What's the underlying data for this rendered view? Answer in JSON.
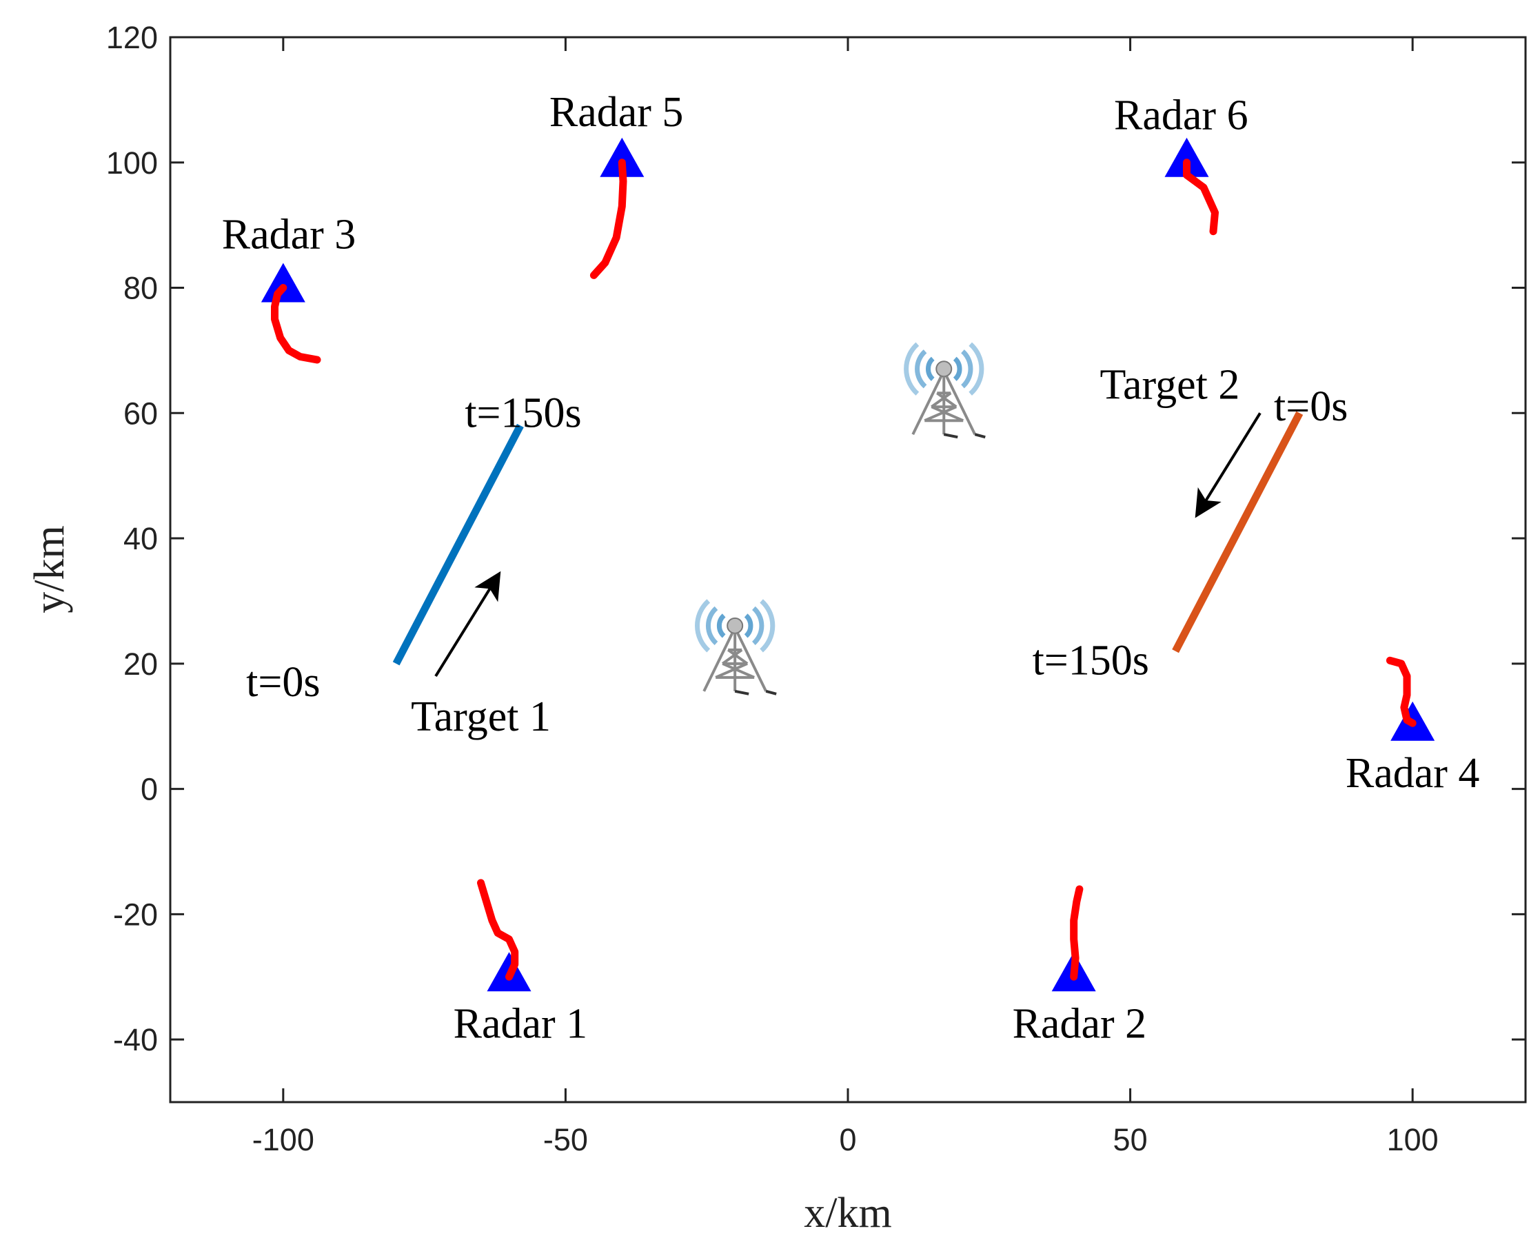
{
  "chart_data": {
    "type": "scatter",
    "title": "",
    "xlabel": "x/km",
    "ylabel": "y/km",
    "xlim": [
      -120,
      120
    ],
    "ylim": [
      -50,
      120
    ],
    "xticks": [
      -100,
      -50,
      0,
      50,
      100
    ],
    "yticks": [
      -40,
      -20,
      0,
      20,
      40,
      60,
      80,
      100,
      120
    ],
    "xtick_labels": [
      "-100",
      "-50",
      "0",
      "50",
      "100"
    ],
    "ytick_labels": [
      "-40",
      "-20",
      "0",
      "20",
      "40",
      "60",
      "80",
      "100",
      "120"
    ],
    "grid": false,
    "radars": [
      {
        "name": "Radar 1",
        "x": -60,
        "y": -30,
        "label_x": -58,
        "label_y": -37.5
      },
      {
        "name": "Radar 2",
        "x": 40,
        "y": -30,
        "label_x": 41,
        "label_y": -37.5
      },
      {
        "name": "Radar 3",
        "x": -100,
        "y": 80,
        "label_x": -99,
        "label_y": 88.5
      },
      {
        "name": "Radar 4",
        "x": 100,
        "y": 10,
        "label_x": 100,
        "label_y": 2.5
      },
      {
        "name": "Radar 5",
        "x": -40,
        "y": 100,
        "label_x": -41,
        "label_y": 108
      },
      {
        "name": "Radar 6",
        "x": 60,
        "y": 100,
        "label_x": 59,
        "label_y": 107.5
      }
    ],
    "radar_color": "#0000ff",
    "radar_tracks": [
      {
        "radar": "Radar 1",
        "points": [
          [
            -65,
            -15
          ],
          [
            -64,
            -18
          ],
          [
            -63,
            -21
          ],
          [
            -62,
            -23
          ],
          [
            -60,
            -24
          ],
          [
            -59,
            -26
          ],
          [
            -59,
            -28
          ],
          [
            -60,
            -30
          ]
        ]
      },
      {
        "radar": "Radar 2",
        "points": [
          [
            41,
            -16
          ],
          [
            40.5,
            -18
          ],
          [
            40,
            -21
          ],
          [
            40,
            -24
          ],
          [
            40.3,
            -27
          ],
          [
            40,
            -30
          ]
        ]
      },
      {
        "radar": "Radar 3",
        "points": [
          [
            -100,
            80
          ],
          [
            -101,
            79
          ],
          [
            -101.5,
            77
          ],
          [
            -101.5,
            75
          ],
          [
            -100.5,
            72
          ],
          [
            -99,
            70
          ],
          [
            -97,
            69
          ],
          [
            -94,
            68.5
          ]
        ]
      },
      {
        "radar": "Radar 4",
        "points": [
          [
            96,
            20.5
          ],
          [
            98,
            20
          ],
          [
            99,
            18
          ],
          [
            99,
            15
          ],
          [
            98.5,
            13
          ],
          [
            99,
            11
          ],
          [
            100,
            10.5
          ]
        ]
      },
      {
        "radar": "Radar 5",
        "points": [
          [
            -40,
            100
          ],
          [
            -39.8,
            97
          ],
          [
            -40,
            93
          ],
          [
            -41,
            88
          ],
          [
            -43,
            84
          ],
          [
            -45,
            82
          ]
        ]
      },
      {
        "radar": "Radar 6",
        "points": [
          [
            60,
            100
          ],
          [
            60,
            98
          ],
          [
            61.5,
            97
          ],
          [
            63,
            96
          ],
          [
            64,
            94
          ],
          [
            65,
            92
          ],
          [
            64.7,
            89
          ]
        ]
      }
    ],
    "track_color": "#ff0000",
    "targets": [
      {
        "name": "Target 1",
        "start": [
          -80,
          20
        ],
        "end": [
          -58,
          58
        ],
        "color": "#0072bd",
        "start_label": "t=0s",
        "start_label_x": -100,
        "start_label_y": 17,
        "end_label": "t=150s",
        "end_label_x": -57.5,
        "end_label_y": 60,
        "label_x": -65,
        "label_y": 11.5,
        "arrow_from": [
          -73,
          18
        ],
        "arrow_to": [
          -62,
          34
        ]
      },
      {
        "name": "Target 2",
        "start": [
          80,
          60
        ],
        "end": [
          58,
          22
        ],
        "color": "#d95319",
        "start_label": "t=0s",
        "start_label_x": 82,
        "start_label_y": 61,
        "end_label": "t=150s",
        "end_label_x": 43,
        "end_label_y": 20.5,
        "label_x": 57,
        "label_y": 64.5,
        "arrow_from": [
          73,
          60
        ],
        "arrow_to": [
          62,
          44
        ]
      }
    ],
    "towers": [
      {
        "name": "comm-tower",
        "x": -20,
        "y": 20
      },
      {
        "name": "comm-tower",
        "x": 17,
        "y": 61
      }
    ]
  }
}
